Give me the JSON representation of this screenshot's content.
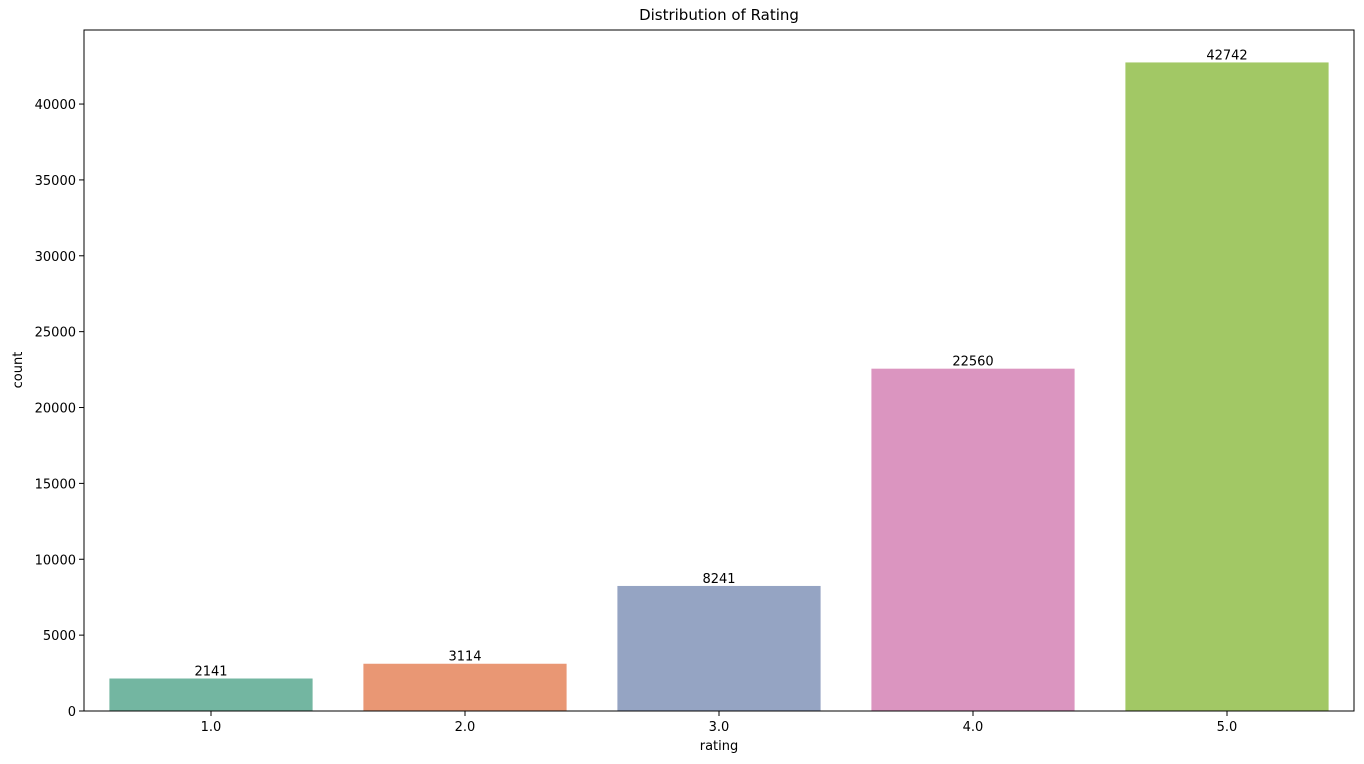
{
  "chart_data": {
    "type": "bar",
    "title": "Distribution of Rating",
    "xlabel": "rating",
    "ylabel": "count",
    "categories": [
      "1.0",
      "2.0",
      "3.0",
      "4.0",
      "5.0"
    ],
    "values": [
      2141,
      3114,
      8241,
      22560,
      42742
    ],
    "data_labels": [
      "2141",
      "3114",
      "8241",
      "22560",
      "42742"
    ],
    "colors": [
      "#73b6a1",
      "#e99774",
      "#95a4c3",
      "#db95c0",
      "#a2c865"
    ],
    "ylim": [
      0,
      44880
    ],
    "yticks": [
      0,
      5000,
      10000,
      15000,
      20000,
      25000,
      30000,
      35000,
      40000
    ],
    "ytick_labels": [
      "0",
      "5000",
      "10000",
      "15000",
      "20000",
      "25000",
      "30000",
      "35000",
      "40000"
    ],
    "grid": false,
    "legend": "none"
  }
}
